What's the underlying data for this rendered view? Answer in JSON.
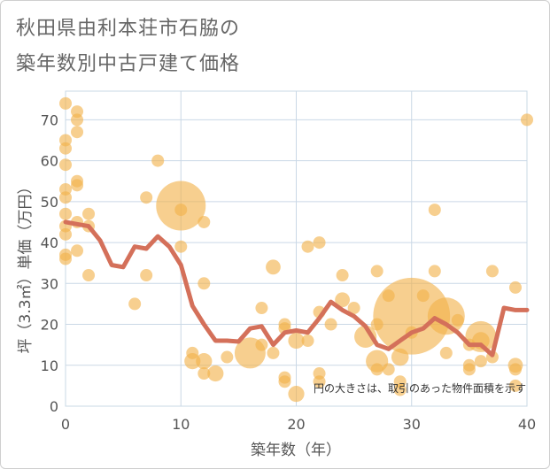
{
  "title_lines": [
    "秋田県由利本荘市石脇の",
    "築年数別中古戸建て価格"
  ],
  "chart_data": {
    "type": "scatter",
    "title": "秋田県由利本荘市石脇の築年数別中古戸建て価格",
    "xlabel": "築年数（年）",
    "ylabel": "坪（3.3㎡）単価（万円）",
    "xlim": [
      0,
      40
    ],
    "ylim": [
      0,
      77
    ],
    "xticks": [
      0,
      10,
      20,
      30,
      40
    ],
    "yticks": [
      0,
      10,
      20,
      30,
      40,
      50,
      60,
      70
    ],
    "grid": true,
    "note": "円の大きさは、取引のあった物件面積を示す",
    "colors": {
      "bubble": "#f2b14a",
      "line": "#d4705a",
      "grid": "#cad8e6"
    },
    "bubble_series": {
      "name": "取引",
      "points": [
        {
          "x": 0,
          "y": 74,
          "size": 1
        },
        {
          "x": 0,
          "y": 65,
          "size": 1
        },
        {
          "x": 0,
          "y": 63,
          "size": 1
        },
        {
          "x": 0,
          "y": 59,
          "size": 1
        },
        {
          "x": 0,
          "y": 53,
          "size": 1
        },
        {
          "x": 0,
          "y": 51,
          "size": 1
        },
        {
          "x": 0,
          "y": 47,
          "size": 1
        },
        {
          "x": 0,
          "y": 44,
          "size": 1
        },
        {
          "x": 0,
          "y": 42,
          "size": 1
        },
        {
          "x": 0,
          "y": 37,
          "size": 1
        },
        {
          "x": 0,
          "y": 36,
          "size": 1
        },
        {
          "x": 1,
          "y": 72,
          "size": 1
        },
        {
          "x": 1,
          "y": 70,
          "size": 1
        },
        {
          "x": 1,
          "y": 67,
          "size": 1
        },
        {
          "x": 1,
          "y": 55,
          "size": 1
        },
        {
          "x": 1,
          "y": 54,
          "size": 1
        },
        {
          "x": 1,
          "y": 45,
          "size": 1
        },
        {
          "x": 1,
          "y": 38,
          "size": 1
        },
        {
          "x": 2,
          "y": 47,
          "size": 1
        },
        {
          "x": 2,
          "y": 44,
          "size": 1
        },
        {
          "x": 2,
          "y": 32,
          "size": 1
        },
        {
          "x": 6,
          "y": 25,
          "size": 1
        },
        {
          "x": 7,
          "y": 51,
          "size": 1
        },
        {
          "x": 7,
          "y": 32,
          "size": 1
        },
        {
          "x": 8,
          "y": 60,
          "size": 1
        },
        {
          "x": 10,
          "y": 49,
          "size": 4
        },
        {
          "x": 10,
          "y": 48,
          "size": 1
        },
        {
          "x": 10,
          "y": 39,
          "size": 1
        },
        {
          "x": 11,
          "y": 13,
          "size": 1
        },
        {
          "x": 11,
          "y": 11,
          "size": 1.3
        },
        {
          "x": 12,
          "y": 45,
          "size": 1
        },
        {
          "x": 12,
          "y": 30,
          "size": 1
        },
        {
          "x": 12,
          "y": 11,
          "size": 1.3
        },
        {
          "x": 12,
          "y": 8,
          "size": 1
        },
        {
          "x": 13,
          "y": 8,
          "size": 1.3
        },
        {
          "x": 14,
          "y": 12,
          "size": 1
        },
        {
          "x": 16,
          "y": 13,
          "size": 2.5
        },
        {
          "x": 17,
          "y": 24,
          "size": 1
        },
        {
          "x": 17,
          "y": 15,
          "size": 1
        },
        {
          "x": 18,
          "y": 34,
          "size": 1.2
        },
        {
          "x": 18,
          "y": 13,
          "size": 1
        },
        {
          "x": 19,
          "y": 20,
          "size": 1
        },
        {
          "x": 19,
          "y": 19,
          "size": 1
        },
        {
          "x": 19,
          "y": 7,
          "size": 1
        },
        {
          "x": 19,
          "y": 6,
          "size": 1
        },
        {
          "x": 20,
          "y": 16,
          "size": 1.3
        },
        {
          "x": 20,
          "y": 3,
          "size": 1.3
        },
        {
          "x": 21,
          "y": 39,
          "size": 1
        },
        {
          "x": 21,
          "y": 16,
          "size": 1
        },
        {
          "x": 22,
          "y": 40,
          "size": 1
        },
        {
          "x": 22,
          "y": 23,
          "size": 1
        },
        {
          "x": 22,
          "y": 8,
          "size": 1
        },
        {
          "x": 22,
          "y": 6,
          "size": 1
        },
        {
          "x": 23,
          "y": 20,
          "size": 1
        },
        {
          "x": 24,
          "y": 32,
          "size": 1
        },
        {
          "x": 24,
          "y": 26,
          "size": 1.2
        },
        {
          "x": 25,
          "y": 24,
          "size": 1
        },
        {
          "x": 26,
          "y": 17,
          "size": 1.8
        },
        {
          "x": 27,
          "y": 33,
          "size": 1
        },
        {
          "x": 27,
          "y": 20,
          "size": 1
        },
        {
          "x": 27,
          "y": 11,
          "size": 1.8
        },
        {
          "x": 27,
          "y": 9,
          "size": 1
        },
        {
          "x": 28,
          "y": 27,
          "size": 1
        },
        {
          "x": 28,
          "y": 9,
          "size": 1
        },
        {
          "x": 29,
          "y": 12,
          "size": 1.4
        },
        {
          "x": 29,
          "y": 6,
          "size": 1
        },
        {
          "x": 29,
          "y": 4,
          "size": 1
        },
        {
          "x": 30,
          "y": 22,
          "size": 6.2
        },
        {
          "x": 30,
          "y": 18,
          "size": 1
        },
        {
          "x": 31,
          "y": 27,
          "size": 1
        },
        {
          "x": 32,
          "y": 48,
          "size": 1
        },
        {
          "x": 32,
          "y": 33,
          "size": 1
        },
        {
          "x": 33,
          "y": 22,
          "size": 3.0
        },
        {
          "x": 33,
          "y": 13,
          "size": 1
        },
        {
          "x": 34,
          "y": 21,
          "size": 1
        },
        {
          "x": 35,
          "y": 15,
          "size": 1
        },
        {
          "x": 35,
          "y": 10,
          "size": 1
        },
        {
          "x": 35,
          "y": 9,
          "size": 1
        },
        {
          "x": 36,
          "y": 17,
          "size": 2.5
        },
        {
          "x": 36,
          "y": 16,
          "size": 1.4
        },
        {
          "x": 36,
          "y": 11,
          "size": 1
        },
        {
          "x": 37,
          "y": 33,
          "size": 1
        },
        {
          "x": 37,
          "y": 12,
          "size": 1
        },
        {
          "x": 39,
          "y": 29,
          "size": 1
        },
        {
          "x": 39,
          "y": 10,
          "size": 1.2
        },
        {
          "x": 39,
          "y": 9,
          "size": 1
        },
        {
          "x": 39,
          "y": 5,
          "size": 1
        },
        {
          "x": 40,
          "y": 70,
          "size": 1
        }
      ]
    },
    "line_series": {
      "name": "平均坪単価",
      "x": [
        0,
        1,
        2,
        3,
        4,
        5,
        6,
        7,
        8,
        9,
        10,
        11,
        12,
        13,
        14,
        15,
        16,
        17,
        18,
        19,
        20,
        21,
        22,
        23,
        24,
        25,
        26,
        27,
        28,
        29,
        30,
        31,
        32,
        33,
        34,
        35,
        36,
        37,
        38,
        39,
        40
      ],
      "y": [
        45,
        44.5,
        44,
        40.5,
        34.5,
        34,
        39,
        38.5,
        41.5,
        39,
        34.5,
        24.5,
        20,
        16,
        16,
        15.8,
        19,
        19.5,
        15,
        18,
        18.5,
        18,
        21.5,
        25.5,
        23.5,
        22,
        19.5,
        15,
        14,
        16,
        18,
        19,
        21.5,
        20,
        18,
        15,
        15,
        12.5,
        24,
        23.5,
        23.5
      ]
    }
  }
}
